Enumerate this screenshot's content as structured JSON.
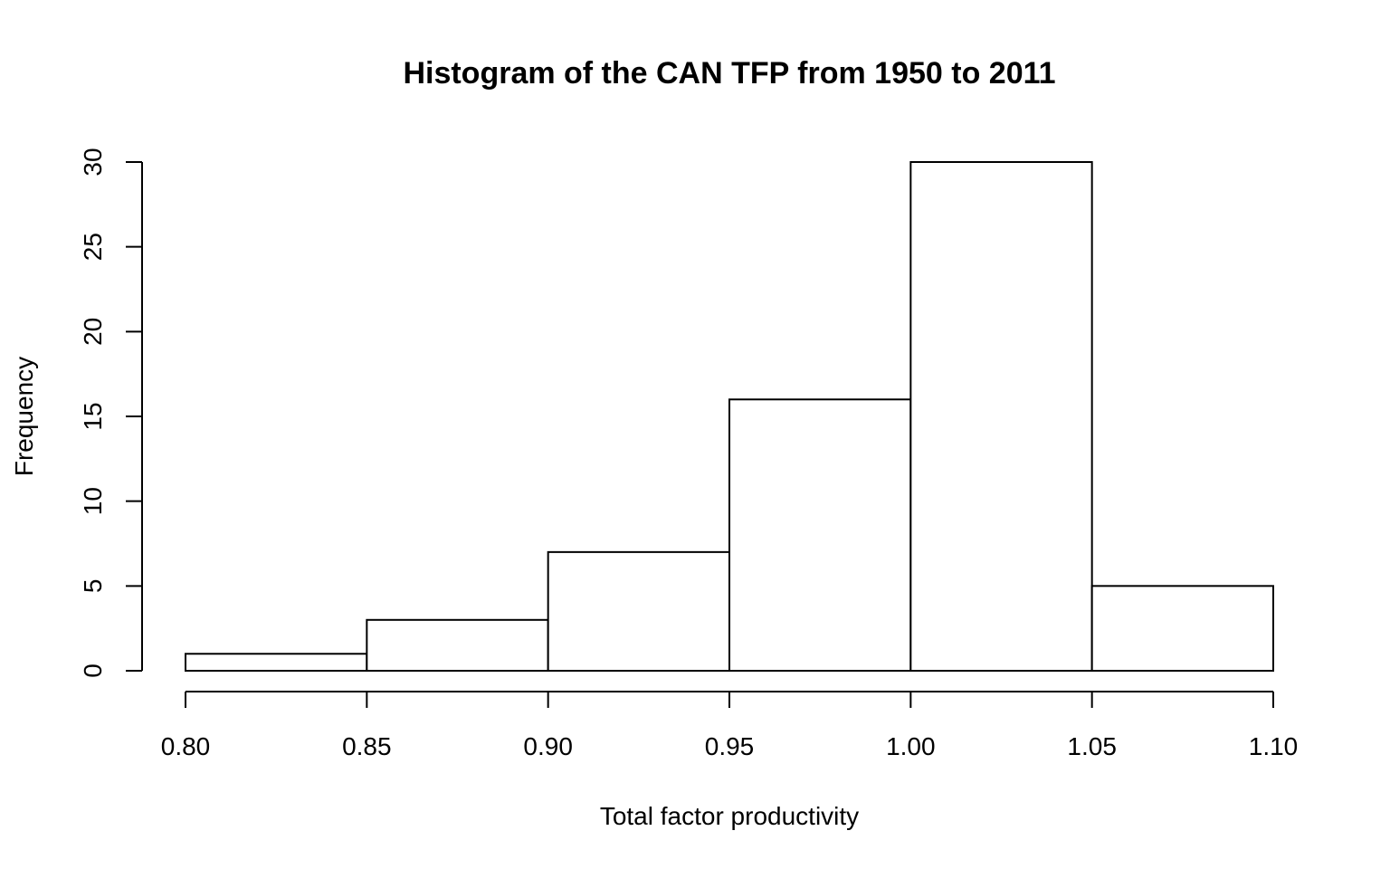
{
  "chart_data": {
    "type": "bar",
    "title": "Histogram of the CAN TFP from 1950 to 2011",
    "xlabel": "Total factor productivity",
    "ylabel": "Frequency",
    "bins": [
      {
        "start": 0.8,
        "end": 0.85,
        "count": 1
      },
      {
        "start": 0.85,
        "end": 0.9,
        "count": 3
      },
      {
        "start": 0.9,
        "end": 0.95,
        "count": 7
      },
      {
        "start": 0.95,
        "end": 1.0,
        "count": 16
      },
      {
        "start": 1.0,
        "end": 1.05,
        "count": 30
      },
      {
        "start": 1.05,
        "end": 1.1,
        "count": 5
      }
    ],
    "xlim": [
      0.8,
      1.1
    ],
    "ylim": [
      0,
      30
    ],
    "x_ticks": [
      "0.80",
      "0.85",
      "0.90",
      "0.95",
      "1.00",
      "1.05",
      "1.10"
    ],
    "y_ticks": [
      "0",
      "5",
      "10",
      "15",
      "20",
      "25",
      "30"
    ],
    "grid": false,
    "bar_fill": "#ffffff",
    "bar_stroke": "#000000"
  }
}
